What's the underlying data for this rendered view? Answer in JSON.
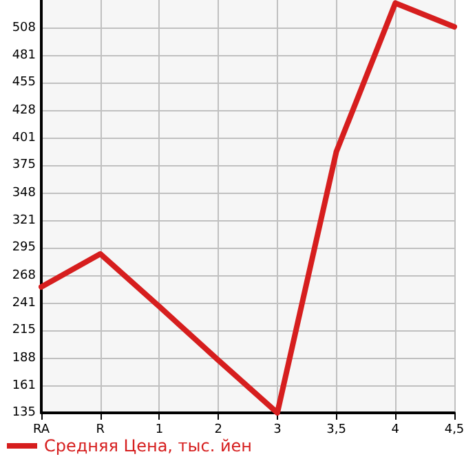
{
  "chart_data": {
    "type": "line",
    "categories": [
      "RA",
      "R",
      "1",
      "2",
      "3",
      "3,5",
      "4",
      "4,5"
    ],
    "series": [
      {
        "name": "Средняя Цена, тыс. йен",
        "color": "#d61e1e",
        "values": [
          257,
          289,
          238,
          186,
          135,
          388,
          532,
          509
        ]
      }
    ],
    "ylim": [
      135,
      535
    ],
    "yticks": [
      135,
      161,
      188,
      215,
      241,
      268,
      295,
      321,
      348,
      375,
      401,
      428,
      455,
      481,
      508
    ],
    "grid": true,
    "legend": "bottom left",
    "marker": "none",
    "line_style": "solid"
  }
}
